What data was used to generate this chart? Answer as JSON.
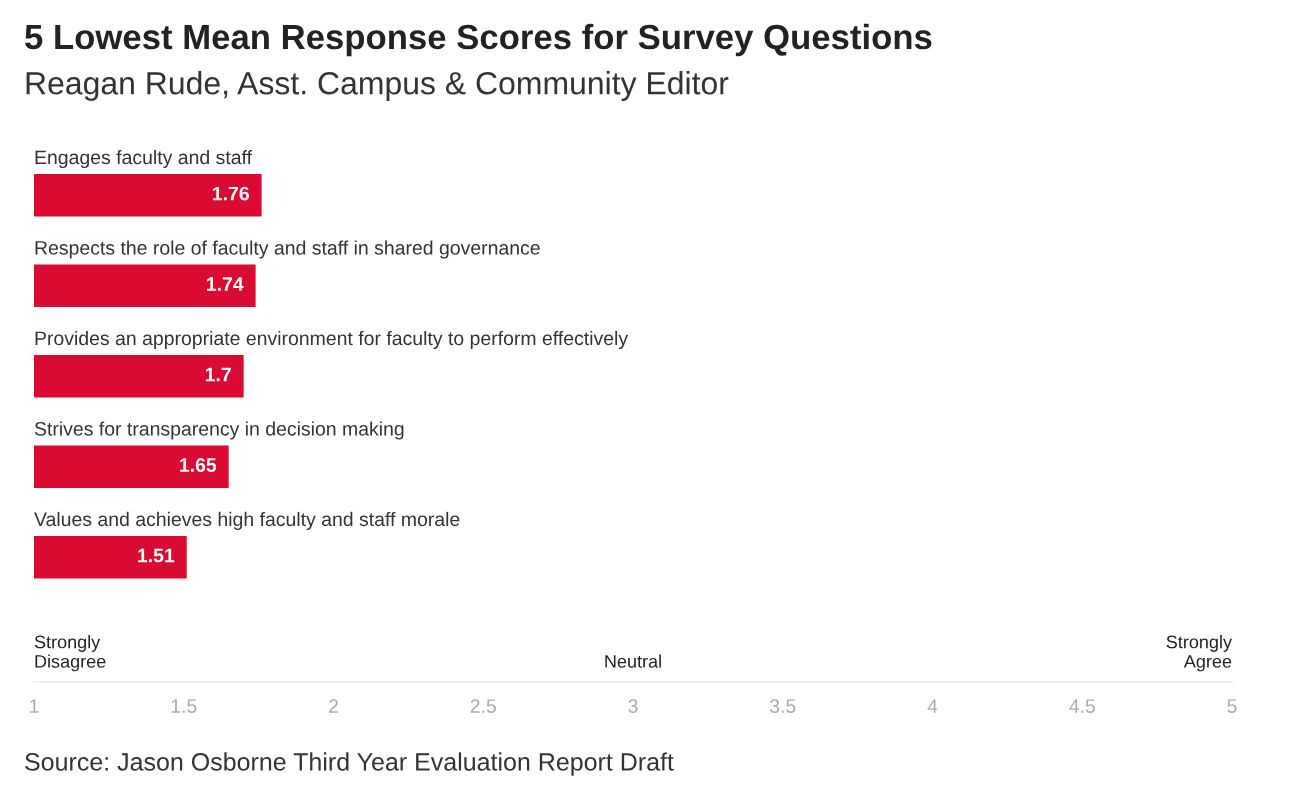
{
  "chart_data": {
    "type": "bar",
    "orientation": "horizontal",
    "title": "5 Lowest Mean Response Scores for Survey Questions",
    "subtitle": "Reagan Rude, Asst. Campus & Community Editor",
    "categories": [
      "Engages faculty and staff",
      "Respects the role of faculty and staff in shared governance",
      "Provides an appropriate environment for faculty to perform effectively",
      "Strives for transparency in decision making",
      "Values and achieves high faculty and staff morale"
    ],
    "values": [
      1.76,
      1.74,
      1.7,
      1.65,
      1.51
    ],
    "color": "#d90b33",
    "data_labels": true,
    "xlim": [
      1,
      5
    ],
    "xticks": [
      1,
      1.5,
      2,
      2.5,
      3,
      3.5,
      4,
      4.5,
      5
    ],
    "grid": false,
    "annotations": [
      "Strongly\nDisagree",
      "Neutral",
      "Strongly\nAgree",
      "Source: Jason Osborne Third Year Evaluation Report Draft"
    ]
  }
}
